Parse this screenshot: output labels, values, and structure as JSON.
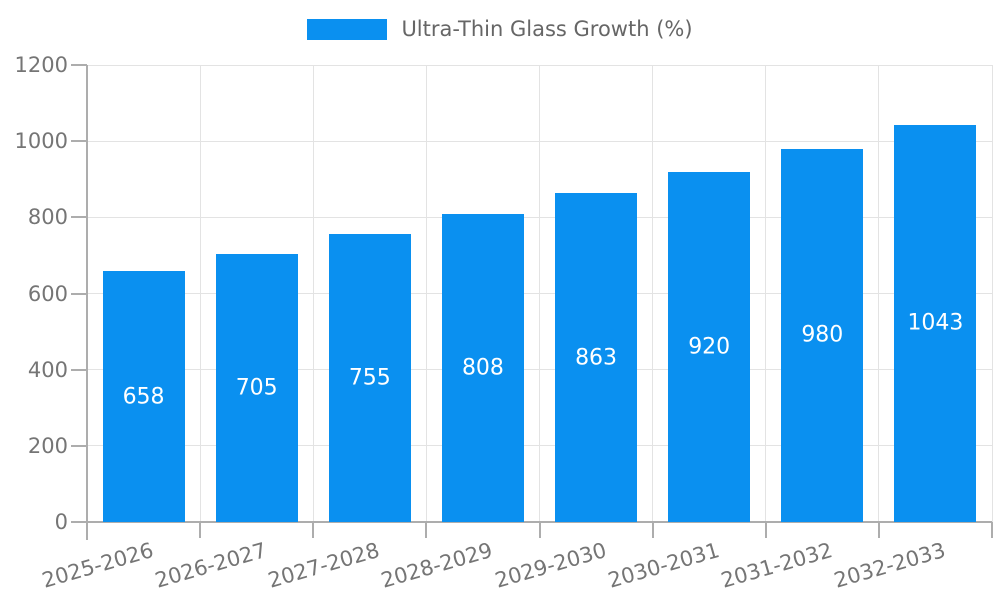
{
  "legend": {
    "label": "Ultra-Thin Glass Growth (%)",
    "swatch_color": "#0a90f0"
  },
  "chart_data": {
    "type": "bar",
    "title": "Ultra-Thin Glass Growth (%)",
    "series_name": "Ultra-Thin Glass Growth (%)",
    "categories": [
      "2025-2026",
      "2026-2027",
      "2027-2028",
      "2028-2029",
      "2029-2030",
      "2030-2031",
      "2031-2032",
      "2032-2033"
    ],
    "values": [
      658,
      705,
      755,
      808,
      863,
      920,
      980,
      1043
    ],
    "xlabel": "",
    "ylabel": "",
    "ylim": [
      0,
      1200
    ],
    "yticks": [
      0,
      200,
      400,
      600,
      800,
      1000,
      1200
    ],
    "grid": true,
    "legend_position": "top",
    "bar_color": "#0a90f0",
    "value_label_color": "#ffffff",
    "axis_color": "#adadad",
    "grid_color": "#e3e3e3",
    "tick_label_color": "#757575",
    "x_tick_rotation_deg": -16
  }
}
